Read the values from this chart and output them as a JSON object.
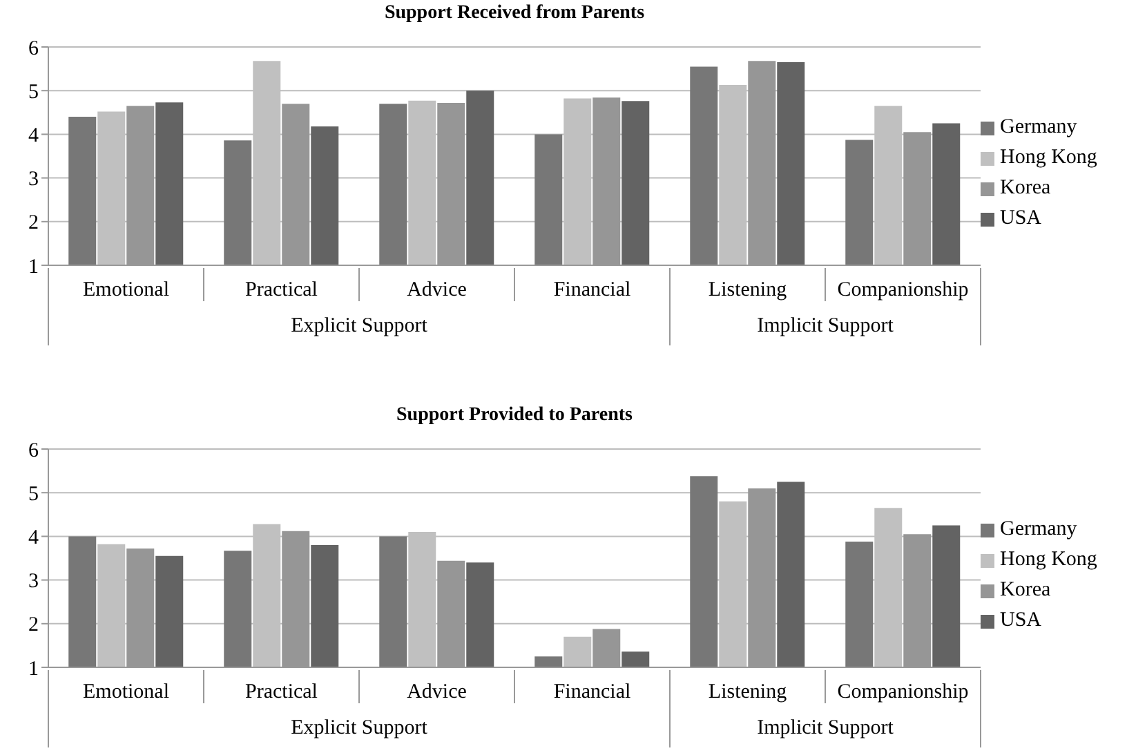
{
  "chart_data": [
    {
      "type": "bar",
      "title": "Support Received from Parents",
      "categories": [
        "Emotional",
        "Practical",
        "Advice",
        "Financial",
        "Listening",
        "Companionship"
      ],
      "series": [
        {
          "name": "Germany",
          "color": "#777777",
          "values": [
            4.4,
            3.86,
            4.7,
            4.0,
            5.55,
            3.87
          ]
        },
        {
          "name": "Hong Kong",
          "color": "#c0c0c0",
          "values": [
            4.52,
            5.68,
            4.77,
            4.82,
            5.13,
            4.65
          ]
        },
        {
          "name": "Korea",
          "color": "#969696",
          "values": [
            4.65,
            4.7,
            4.72,
            4.84,
            5.68,
            4.05
          ]
        },
        {
          "name": "USA",
          "color": "#636363",
          "values": [
            4.73,
            4.18,
            5.0,
            4.76,
            5.65,
            4.25
          ]
        }
      ],
      "ylim": [
        1,
        6
      ],
      "yticks": [
        1,
        2,
        3,
        4,
        5,
        6
      ],
      "grid": "y",
      "legend": "right",
      "annotations": [
        "Explicit Support",
        "Implicit Support"
      ]
    },
    {
      "type": "bar",
      "title": "Support Provided to Parents",
      "categories": [
        "Emotional",
        "Practical",
        "Advice",
        "Financial",
        "Listening",
        "Companionship"
      ],
      "series": [
        {
          "name": "Germany",
          "color": "#777777",
          "values": [
            4.0,
            3.67,
            4.0,
            1.25,
            5.38,
            3.88
          ]
        },
        {
          "name": "Hong Kong",
          "color": "#c0c0c0",
          "values": [
            3.82,
            4.28,
            4.1,
            1.7,
            4.8,
            4.65
          ]
        },
        {
          "name": "Korea",
          "color": "#969696",
          "values": [
            3.72,
            4.12,
            3.44,
            1.88,
            5.1,
            4.05
          ]
        },
        {
          "name": "USA",
          "color": "#636363",
          "values": [
            3.55,
            3.8,
            3.4,
            1.36,
            5.25,
            4.25
          ]
        }
      ],
      "ylim": [
        1,
        6
      ],
      "yticks": [
        1,
        2,
        3,
        4,
        5,
        6
      ],
      "grid": "y",
      "legend": "right",
      "annotations": [
        "Explicit Support",
        "Implicit Support"
      ]
    }
  ]
}
